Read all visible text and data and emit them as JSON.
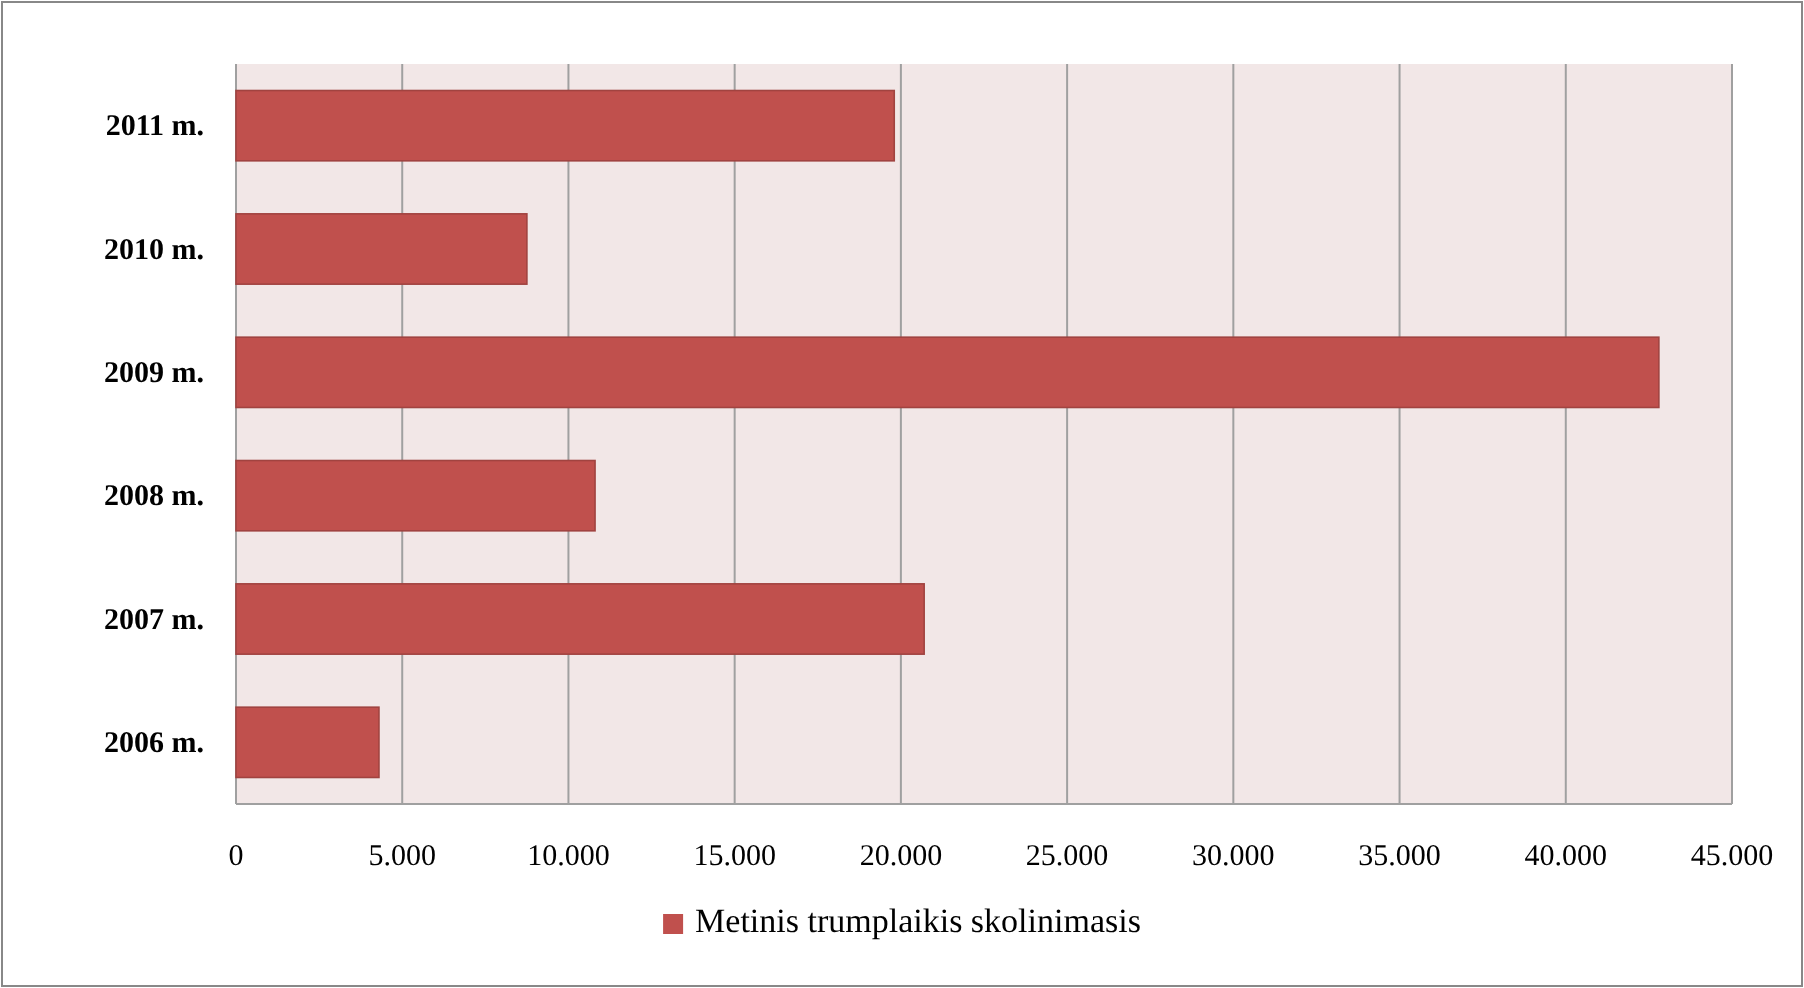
{
  "chart_data": {
    "type": "bar",
    "orientation": "horizontal",
    "categories": [
      "2011 m.",
      "2010 m.",
      "2009 m.",
      "2008 m.",
      "2007 m.",
      "2006 m."
    ],
    "series": [
      {
        "name": "Metinis trumplaikis skolinimasis",
        "color": "#c0504d",
        "values": [
          19800,
          8750,
          42800,
          10800,
          20700,
          4300
        ]
      }
    ],
    "xlim": [
      0,
      45000
    ],
    "xticks": [
      {
        "value": 0,
        "label": "0"
      },
      {
        "value": 5000,
        "label": "5.000"
      },
      {
        "value": 10000,
        "label": "10.000"
      },
      {
        "value": 15000,
        "label": "15.000"
      },
      {
        "value": 20000,
        "label": "20.000"
      },
      {
        "value": 25000,
        "label": "25.000"
      },
      {
        "value": 30000,
        "label": "30.000"
      },
      {
        "value": 35000,
        "label": "35.000"
      },
      {
        "value": 40000,
        "label": "40.000"
      },
      {
        "value": 45000,
        "label": "45.000"
      }
    ],
    "grid": "x",
    "legend": "bottom"
  }
}
